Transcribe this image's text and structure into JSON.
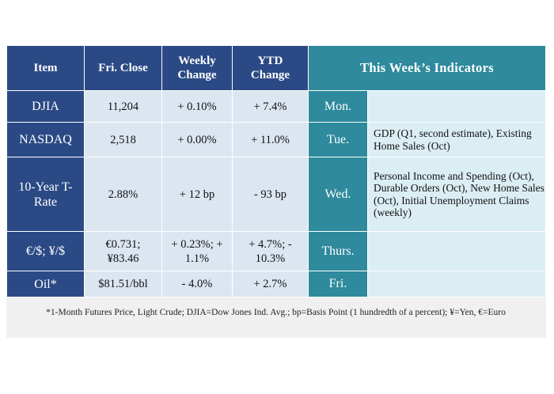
{
  "table": {
    "headers": {
      "item": "Item",
      "close": "Fri. Close",
      "weekly": "Weekly Change",
      "ytd": "YTD Change",
      "indicators": "This Week’s Indicators"
    },
    "rows": [
      {
        "item": "DJIA",
        "close": "11,204",
        "weekly": "+ 0.10%",
        "ytd": "+ 7.4%",
        "day": "Mon.",
        "indicators": ""
      },
      {
        "item": "NASDAQ",
        "close": "2,518",
        "weekly": "+ 0.00%",
        "ytd": "+ 11.0%",
        "day": "Tue.",
        "indicators": "GDP (Q1, second estimate), Existing Home Sales (Oct)"
      },
      {
        "item": "10-Year T-Rate",
        "close": "2.88%",
        "weekly": "+ 12 bp",
        "ytd": "- 93 bp",
        "day": "Wed.",
        "indicators": "Personal Income and Spending (Oct), Durable Orders (Oct), New Home Sales (Oct), Initial Unemployment Claims (weekly)"
      },
      {
        "item": "€/$; ¥/$",
        "close": "€0.731; ¥83.46",
        "weekly": "+ 0.23%; + 1.1%",
        "ytd": "+ 4.7%; - 10.3%",
        "day": "Thurs.",
        "indicators": ""
      },
      {
        "item": "Oil*",
        "close": "$81.51/bbl",
        "weekly": "- 4.0%",
        "ytd": "+ 2.7%",
        "day": "Fri.",
        "indicators": ""
      }
    ]
  },
  "footnote": "*1-Month Futures Price, Light Crude; DJIA=Dow Jones Ind. Avg.; bp=Basis Point (1 hundredth of a percent); ¥=Yen, €=Euro",
  "colors": {
    "header_blue": "#2b4a85",
    "header_teal": "#2e8a9c",
    "cell_light": "#dce6f1",
    "indicator_light": "#dbeef3"
  }
}
